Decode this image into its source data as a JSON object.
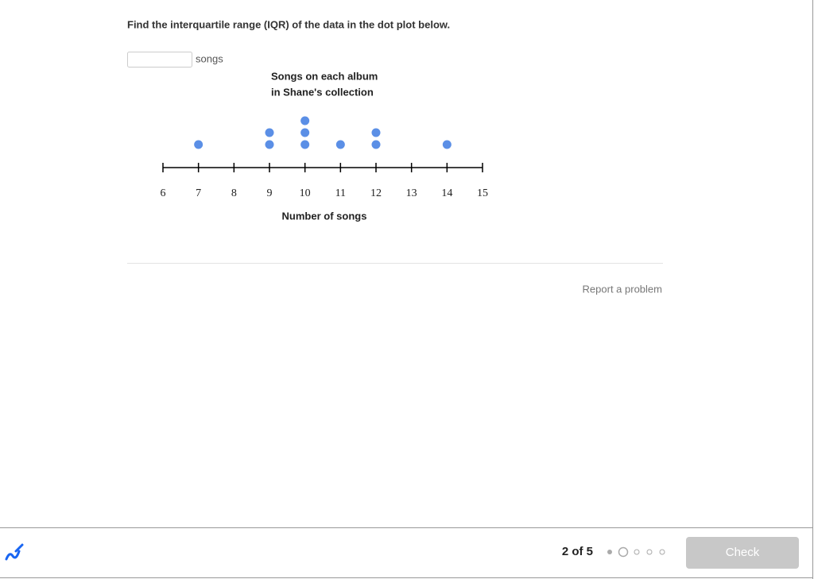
{
  "question": "Find the interquartile range (IQR) of the data in the dot plot below.",
  "answer_unit": "songs",
  "chart_data": {
    "type": "dot",
    "title_lines": [
      "Songs on each album",
      "in Shane's collection"
    ],
    "x": [
      7,
      9,
      10,
      11,
      12,
      14
    ],
    "values": [
      1,
      2,
      3,
      1,
      2,
      1
    ],
    "color": "#5b8fe6",
    "xlim": [
      6,
      15
    ],
    "xticks": [
      6,
      7,
      8,
      9,
      10,
      11,
      12,
      13,
      14,
      15
    ],
    "xlabel": "Number of songs"
  },
  "report_link": "Report a problem",
  "footer": {
    "progress": "2 of 5",
    "button": "Check"
  }
}
